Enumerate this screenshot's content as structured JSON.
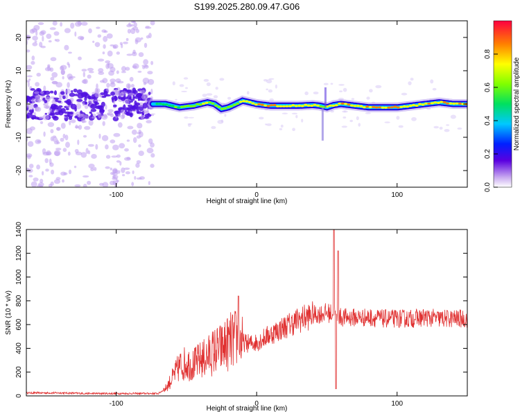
{
  "title": "S199.2025.280.09.47.G06",
  "chart_data": [
    {
      "type": "heatmap",
      "xlabel": "Height of straight line (km)",
      "ylabel": "Frequency (Hz)",
      "xlim": [
        -164,
        150
      ],
      "ylim": [
        -25,
        25
      ],
      "xticks": [
        -100,
        0,
        100
      ],
      "yticks": [
        -20,
        -10,
        0,
        10,
        20
      ],
      "colorbar": {
        "label": "Normalized spectral amplitude",
        "range": [
          0,
          1
        ],
        "ticks": [
          "0.0",
          "0.2",
          "0.4",
          "0.6",
          "0.8"
        ]
      },
      "noisy_region_x": [
        -164,
        -74
      ],
      "ridge": {
        "x": [
          -74,
          -65,
          -55,
          -45,
          -35,
          -30,
          -25,
          -20,
          -15,
          -10,
          -5,
          0,
          10,
          20,
          30,
          40,
          45,
          50,
          55,
          60,
          70,
          80,
          90,
          100,
          110,
          120,
          130,
          140,
          150
        ],
        "frequency": [
          0,
          0,
          -1,
          -0.5,
          0.5,
          0,
          -1.5,
          -1,
          0,
          1,
          0.5,
          0,
          -0.5,
          -0.5,
          -0.5,
          -0.3,
          -0.5,
          -1,
          -0.3,
          0,
          -0.5,
          -1,
          -1,
          -1,
          -0.5,
          0,
          0.5,
          0,
          0
        ],
        "amplitude": [
          0.5,
          0.6,
          0.7,
          0.75,
          0.8,
          0.75,
          0.7,
          0.7,
          0.8,
          0.85,
          0.85,
          0.9,
          0.9,
          0.9,
          0.9,
          0.85,
          0.8,
          0.8,
          0.85,
          0.9,
          0.9,
          0.95,
          0.95,
          0.95,
          0.9,
          0.9,
          0.95,
          0.95,
          0.95
        ]
      }
    },
    {
      "type": "line",
      "xlabel": "Height of straight line (km)",
      "ylabel": "SNR (10 * v/v)",
      "xlim": [
        -164,
        150
      ],
      "ylim": [
        0,
        1400
      ],
      "xticks": [
        -100,
        0,
        100
      ],
      "yticks": [
        0,
        200,
        400,
        600,
        800,
        1000,
        1200,
        1400
      ],
      "color": "#e03030",
      "x": [
        -164,
        -140,
        -120,
        -100,
        -80,
        -70,
        -65,
        -60,
        -55,
        -50,
        -45,
        -40,
        -35,
        -30,
        -25,
        -20,
        -15,
        -10,
        -5,
        0,
        10,
        20,
        30,
        40,
        50,
        55,
        60,
        70,
        80,
        90,
        100,
        110,
        120,
        130,
        140,
        150
      ],
      "values": [
        25,
        25,
        20,
        20,
        20,
        20,
        60,
        150,
        250,
        280,
        260,
        300,
        330,
        380,
        400,
        450,
        480,
        450,
        440,
        450,
        520,
        580,
        640,
        680,
        700,
        690,
        660,
        660,
        660,
        650,
        650,
        650,
        660,
        650,
        650,
        650
      ],
      "spikes": [
        {
          "x": -13,
          "value": 840
        },
        {
          "x": 55,
          "value": 1400
        },
        {
          "x": 56.5,
          "value": 60
        },
        {
          "x": 58,
          "value": 1220
        }
      ]
    }
  ]
}
